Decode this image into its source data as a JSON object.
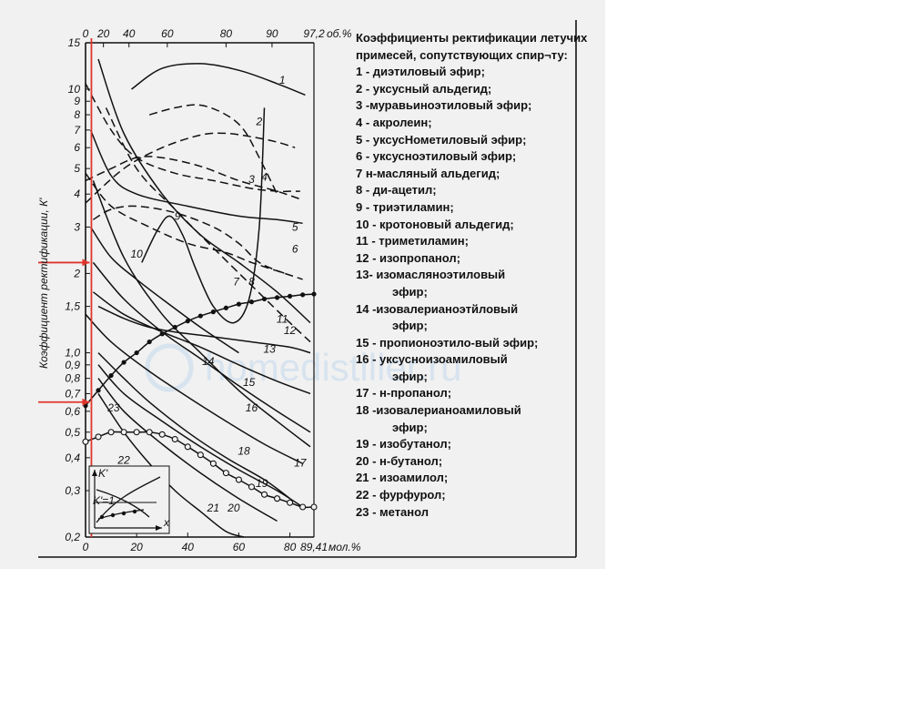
{
  "legend": {
    "title": "Коэффициенты ректификации летучих примесей, сопутствующих спир¬ту:",
    "items": [
      {
        "text": "1 - диэтиловый эфир;"
      },
      {
        "text": " 2 - уксусный альдегид;"
      },
      {
        "text": "3 -муравьиноэтиловый эфир;"
      },
      {
        "text": "4 - акролеин;"
      },
      {
        "text": "5 - уксусНометиловый эфир;"
      },
      {
        "text": "6 - уксусноэтиловый эфир;"
      },
      {
        "text": "7 н-масляный альдегид;"
      },
      {
        "text": "8 - ди-ацетил;"
      },
      {
        "text": "9 - триэтиламин;"
      },
      {
        "text": "10 - кротоновый альдегид;"
      },
      {
        "text": "11 - триметиламин;"
      },
      {
        "text": "12 - изопропанол;"
      },
      {
        "text": "13- изомасляноэтиловый",
        "cont": "эфир;"
      },
      {
        "text": "14 -изовалерианоэтйловый",
        "cont": "эфир;"
      },
      {
        "text": "15 - пропионоэтило-вый эфир;"
      },
      {
        "text": "16 - уксусноизоамиловый",
        "cont": "эфир;"
      },
      {
        "text": "17 - н-пропанол;"
      },
      {
        "text": "18 -изовалерианоамиловый",
        "cont": "эфир;"
      },
      {
        "text": "19 - изобутанол;"
      },
      {
        "text": "20 - н-бутанол;"
      },
      {
        "text": "21 - изоамилол;"
      },
      {
        "text": "22 - фурфурол;"
      },
      {
        "text": "23 - метанол"
      }
    ]
  },
  "watermark": "homedistiller.ru",
  "chart_data": {
    "type": "line",
    "ylabel": "Коэффициент ректификации, К'",
    "x_bottom": {
      "unit_label": "мол.%",
      "ticks": [
        "0",
        "20",
        "40",
        "60",
        "80",
        "89,41"
      ],
      "ticks_values": [
        0,
        20,
        40,
        60,
        80,
        89.41
      ]
    },
    "x_top": {
      "unit_label": "об.%",
      "ticks": [
        "0",
        "20",
        "40",
        "60",
        "80",
        "90",
        "97,2"
      ],
      "ticks_mol": [
        0,
        7,
        17,
        32,
        55,
        73,
        89.41
      ]
    },
    "y_scale": "log",
    "y_ticks": [
      "0,2",
      "0,3",
      "0,4",
      "0,5",
      "0,6",
      "0,7",
      "0,8",
      "0,9",
      "1,0",
      "1,5",
      "2",
      "3",
      "4",
      "5",
      "6",
      "7",
      "8",
      "9",
      "10",
      "15"
    ],
    "y_ticks_values": [
      0.2,
      0.3,
      0.4,
      0.5,
      0.6,
      0.7,
      0.8,
      0.9,
      1.0,
      1.5,
      2,
      3,
      4,
      5,
      6,
      7,
      8,
      9,
      10,
      15
    ],
    "xlim": [
      0,
      89.41
    ],
    "ylim": [
      0.2,
      15
    ],
    "series": [
      {
        "name": "1",
        "x": [
          18,
          30,
          45,
          60,
          75,
          86
        ],
        "y": [
          10,
          12,
          12.5,
          11.8,
          10.5,
          9.5
        ]
      },
      {
        "name": "2",
        "x": [
          0,
          15,
          30,
          45,
          55,
          65,
          75,
          82
        ],
        "y": [
          3.7,
          5,
          6,
          6.7,
          6.8,
          6.6,
          6.3,
          6
        ]
      },
      {
        "name": "3",
        "x": [
          25,
          35,
          45,
          55,
          62,
          68,
          75
        ],
        "y": [
          8,
          8.5,
          8.7,
          8,
          7,
          5.5,
          4
        ]
      },
      {
        "name": "4",
        "x": [
          0,
          10,
          20,
          30,
          45,
          60,
          75,
          85
        ],
        "y": [
          4.5,
          5,
          5.5,
          5.5,
          5.1,
          4.5,
          4.1,
          3.8
        ]
      },
      {
        "name": "5",
        "x": [
          0,
          10,
          20,
          35,
          50,
          65,
          75,
          80,
          84
        ],
        "y": [
          10.5,
          7,
          5.5,
          4.8,
          4.5,
          4.2,
          4.1,
          4.1,
          4.1
        ]
      },
      {
        "name": "6",
        "x": [
          2,
          10,
          20,
          40,
          60,
          75,
          85
        ],
        "y": [
          7,
          4.7,
          4,
          3.6,
          3.3,
          3.2,
          3.1
        ]
      },
      {
        "name": "7",
        "x": [
          3,
          10,
          20,
          35,
          50,
          60,
          68,
          78
        ],
        "y": [
          3.2,
          3.5,
          3.6,
          3.4,
          3,
          2.6,
          2.2,
          2
        ]
      },
      {
        "name": "8",
        "x": [
          0,
          10,
          25,
          40,
          55,
          65,
          78,
          85
        ],
        "y": [
          4.8,
          3.6,
          3,
          2.6,
          2.4,
          2.2,
          2,
          1.9
        ]
      },
      {
        "name": "9",
        "x": [
          22,
          28,
          33,
          38,
          43,
          50,
          58,
          64,
          68,
          70
        ],
        "y": [
          2.2,
          2.9,
          3.3,
          2.8,
          2.1,
          1.5,
          1.3,
          1.6,
          3,
          8.5
        ]
      },
      {
        "name": "10",
        "x": [
          2,
          10,
          20,
          30,
          45,
          60
        ],
        "y": [
          3,
          2.3,
          1.9,
          1.6,
          1.25,
          1.0
        ]
      },
      {
        "name": "11",
        "x": [
          5,
          15,
          30,
          45,
          60,
          75,
          88
        ],
        "y": [
          13,
          6.8,
          4,
          2.8,
          2.2,
          1.7,
          1.3
        ]
      },
      {
        "name": "12",
        "x": [
          8,
          20,
          35,
          50,
          65,
          80,
          88
        ],
        "y": [
          8.5,
          5,
          3.5,
          2.5,
          1.8,
          1.3,
          1.1
        ]
      },
      {
        "name": "13",
        "x": [
          5,
          15,
          25,
          35,
          50,
          65,
          80,
          88
        ],
        "y": [
          1.5,
          1.35,
          1.25,
          1.2,
          1.15,
          1.1,
          1.05,
          1.0
        ]
      },
      {
        "name": "14",
        "x": [
          3,
          15,
          30,
          45,
          60,
          75,
          88
        ],
        "y": [
          1.7,
          1.4,
          1.2,
          1.05,
          0.9,
          0.78,
          0.7
        ]
      },
      {
        "name": "15",
        "x": [
          3,
          15,
          30,
          45,
          60,
          75,
          88
        ],
        "y": [
          2.2,
          1.6,
          1.2,
          0.95,
          0.75,
          0.6,
          0.5
        ]
      },
      {
        "name": "16",
        "x": [
          3,
          15,
          30,
          45,
          60,
          75,
          88
        ],
        "y": [
          4.5,
          2.3,
          1.4,
          1.0,
          0.72,
          0.55,
          0.44
        ]
      },
      {
        "name": "17",
        "x": [
          0,
          10,
          25,
          40,
          55,
          70,
          85
        ],
        "y": [
          1.4,
          1.1,
          0.85,
          0.68,
          0.55,
          0.45,
          0.38
        ]
      },
      {
        "name": "18",
        "x": [
          5,
          15,
          25,
          40,
          55,
          70,
          80
        ],
        "y": [
          1.0,
          0.8,
          0.65,
          0.5,
          0.4,
          0.33,
          0.28
        ]
      },
      {
        "name": "19",
        "x": [
          5,
          15,
          30,
          45,
          60,
          75,
          85
        ],
        "y": [
          0.9,
          0.7,
          0.55,
          0.44,
          0.36,
          0.3,
          0.26
        ]
      },
      {
        "name": "20",
        "x": [
          5,
          15,
          30,
          45,
          60,
          75
        ],
        "y": [
          0.8,
          0.6,
          0.45,
          0.35,
          0.28,
          0.23
        ]
      },
      {
        "name": "21",
        "x": [
          5,
          15,
          25,
          35,
          45,
          55,
          62
        ],
        "y": [
          0.7,
          0.5,
          0.38,
          0.3,
          0.25,
          0.21,
          0.2
        ]
      },
      {
        "name": "22",
        "x": [
          0,
          5,
          10,
          15,
          20,
          25,
          30,
          35,
          40,
          45,
          50,
          55,
          60,
          65,
          70,
          75,
          80,
          85,
          89.41
        ],
        "y": [
          0.46,
          0.48,
          0.5,
          0.5,
          0.5,
          0.5,
          0.49,
          0.47,
          0.44,
          0.41,
          0.38,
          0.35,
          0.33,
          0.31,
          0.29,
          0.28,
          0.27,
          0.26,
          0.26
        ]
      },
      {
        "name": "23",
        "x": [
          0,
          5,
          10,
          15,
          20,
          25,
          30,
          35,
          40,
          45,
          50,
          55,
          60,
          65,
          70,
          75,
          80,
          85,
          89.41
        ],
        "y": [
          0.63,
          0.72,
          0.82,
          0.92,
          1.0,
          1.1,
          1.18,
          1.25,
          1.32,
          1.38,
          1.43,
          1.48,
          1.53,
          1.56,
          1.6,
          1.62,
          1.64,
          1.66,
          1.67
        ]
      }
    ],
    "marked_series": [
      "22",
      "23"
    ],
    "label_positions": {
      "1": [
        77,
        10.5
      ],
      "2": [
        68,
        7.3
      ],
      "3": [
        65,
        4.4
      ],
      "4": [
        70,
        4.5
      ],
      "5": [
        82,
        2.9
      ],
      "6": [
        82,
        2.4
      ],
      "7": [
        59,
        1.8
      ],
      "8": [
        65,
        1.8
      ],
      "9": [
        36,
        3.2
      ],
      "10": [
        20,
        2.3
      ],
      "11": [
        77,
        1.3
      ],
      "12": [
        80,
        1.18
      ],
      "13": [
        72,
        1.0
      ],
      "14": [
        48,
        0.9
      ],
      "15": [
        64,
        0.75
      ],
      "16": [
        65,
        0.6
      ],
      "17": [
        84,
        0.37
      ],
      "18": [
        62,
        0.41
      ],
      "19": [
        69,
        0.31
      ],
      "20": [
        58,
        0.25
      ],
      "21": [
        50,
        0.25
      ],
      "22": [
        15,
        0.38
      ],
      "23": [
        11,
        0.6
      ]
    },
    "marker_lines": [
      {
        "kind": "vertical",
        "x": 2.3
      },
      {
        "kind": "horizontal",
        "y": 2.2
      },
      {
        "kind": "horizontal",
        "y": 0.65
      }
    ],
    "inset": {
      "ylabel": "K'",
      "y_mark": "K'=1",
      "xlabel": "x"
    }
  }
}
